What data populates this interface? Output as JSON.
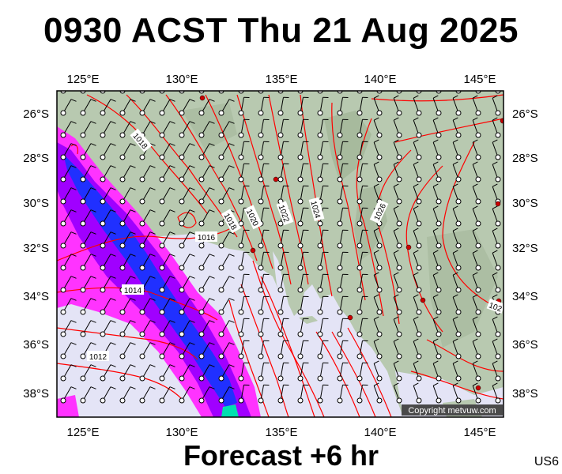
{
  "header": {
    "title": "0930 ACST Thu 21 Aug 2025"
  },
  "footer": {
    "forecast": "Forecast +6 hr",
    "code": "US6"
  },
  "copyright": "Copyright metvuw.com",
  "map": {
    "lon_range": [
      124.0,
      146.4
    ],
    "lat_range": [
      -39.0,
      -25.0
    ],
    "lon_ticks": [
      "125°E",
      "130°E",
      "135°E",
      "140°E",
      "145°E"
    ],
    "lat_ticks": [
      "26°S",
      "28°S",
      "30°S",
      "32°S",
      "34°S",
      "36°S",
      "38°S"
    ],
    "isobar_labels": [
      "1018",
      "1016",
      "1018",
      "1020",
      "1022",
      "1024",
      "1026",
      "1014",
      "1012",
      "102"
    ],
    "colors": {
      "land": "#b8c9b0",
      "ocean": "#e4e4f6",
      "isobar": "#ff0000",
      "rain_light": "#ff33ff",
      "rain_mid": "#a000ff",
      "rain_heavy": "#2030ff"
    }
  }
}
